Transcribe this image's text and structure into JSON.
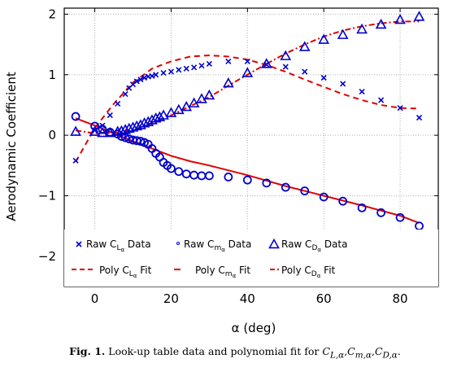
{
  "chart_data": {
    "type": "scatter",
    "xlabel": "α (deg)",
    "ylabel": "Aerodynamic Coefficient",
    "xlim": [
      -8,
      90
    ],
    "ylim": [
      -2.5,
      2.1
    ],
    "xticks": [
      0,
      20,
      40,
      60,
      80
    ],
    "yticks": [
      -2,
      -1,
      0,
      1,
      2
    ],
    "grid": true,
    "legend": [
      "Raw C_Lα Data",
      "Raw C_mα Data",
      "Raw C_Dα Data",
      "Poly C_Lα Fit",
      "Poly C_mα Fit",
      "Poly C_Dα Fit"
    ],
    "series": [
      {
        "marker": "x",
        "color": "#0000cc",
        "points": [
          [
            -5,
            -0.42
          ],
          [
            0,
            0.08
          ],
          [
            2,
            0.16
          ],
          [
            4,
            0.33
          ],
          [
            6,
            0.52
          ],
          [
            8,
            0.68
          ],
          [
            9,
            0.78
          ],
          [
            10,
            0.84
          ],
          [
            11,
            0.89
          ],
          [
            12,
            0.92
          ],
          [
            13,
            0.95
          ],
          [
            14,
            0.97
          ],
          [
            15,
            0.98
          ],
          [
            16,
            1.0
          ],
          [
            18,
            1.03
          ],
          [
            20,
            1.05
          ],
          [
            22,
            1.08
          ],
          [
            24,
            1.1
          ],
          [
            26,
            1.12
          ],
          [
            28,
            1.15
          ],
          [
            30,
            1.18
          ],
          [
            35,
            1.22
          ],
          [
            40,
            1.22
          ],
          [
            45,
            1.17
          ],
          [
            50,
            1.13
          ],
          [
            55,
            1.05
          ],
          [
            60,
            0.95
          ],
          [
            65,
            0.85
          ],
          [
            70,
            0.72
          ],
          [
            75,
            0.58
          ],
          [
            80,
            0.45
          ],
          [
            85,
            0.29
          ]
        ]
      },
      {
        "marker": "o",
        "color": "#0000cc",
        "points": [
          [
            -5,
            0.31
          ],
          [
            0,
            0.15
          ],
          [
            2,
            0.1
          ],
          [
            4,
            0.05
          ],
          [
            6,
            0.02
          ],
          [
            7,
            -0.02
          ],
          [
            8,
            -0.04
          ],
          [
            9,
            -0.06
          ],
          [
            10,
            -0.08
          ],
          [
            11,
            -0.09
          ],
          [
            12,
            -0.1
          ],
          [
            13,
            -0.12
          ],
          [
            14,
            -0.15
          ],
          [
            15,
            -0.22
          ],
          [
            16,
            -0.3
          ],
          [
            17,
            -0.36
          ],
          [
            18,
            -0.45
          ],
          [
            19,
            -0.5
          ],
          [
            20,
            -0.55
          ],
          [
            22,
            -0.6
          ],
          [
            24,
            -0.64
          ],
          [
            26,
            -0.66
          ],
          [
            28,
            -0.67
          ],
          [
            30,
            -0.67
          ],
          [
            35,
            -0.69
          ],
          [
            40,
            -0.74
          ],
          [
            45,
            -0.79
          ],
          [
            50,
            -0.86
          ],
          [
            55,
            -0.92
          ],
          [
            60,
            -1.02
          ],
          [
            65,
            -1.09
          ],
          [
            70,
            -1.2
          ],
          [
            75,
            -1.28
          ],
          [
            80,
            -1.36
          ],
          [
            85,
            -1.5
          ]
        ]
      },
      {
        "marker": "triangle",
        "color": "#0000cc",
        "points": [
          [
            -5,
            0.06
          ],
          [
            0,
            0.06
          ],
          [
            2,
            0.04
          ],
          [
            4,
            0.04
          ],
          [
            6,
            0.06
          ],
          [
            7,
            0.07
          ],
          [
            8,
            0.09
          ],
          [
            9,
            0.11
          ],
          [
            10,
            0.13
          ],
          [
            11,
            0.15
          ],
          [
            12,
            0.17
          ],
          [
            13,
            0.2
          ],
          [
            14,
            0.22
          ],
          [
            15,
            0.25
          ],
          [
            16,
            0.28
          ],
          [
            17,
            0.3
          ],
          [
            18,
            0.33
          ],
          [
            20,
            0.37
          ],
          [
            22,
            0.42
          ],
          [
            24,
            0.47
          ],
          [
            26,
            0.53
          ],
          [
            28,
            0.6
          ],
          [
            30,
            0.66
          ],
          [
            35,
            0.86
          ],
          [
            40,
            1.03
          ],
          [
            45,
            1.18
          ],
          [
            50,
            1.31
          ],
          [
            55,
            1.46
          ],
          [
            60,
            1.58
          ],
          [
            65,
            1.66
          ],
          [
            70,
            1.75
          ],
          [
            75,
            1.83
          ],
          [
            80,
            1.91
          ],
          [
            85,
            1.96
          ]
        ]
      }
    ],
    "fits": [
      {
        "style": "dashed",
        "color": "#e00000",
        "points": [
          [
            -5,
            -0.44
          ],
          [
            0,
            0.12
          ],
          [
            5,
            0.52
          ],
          [
            10,
            0.87
          ],
          [
            15,
            1.1
          ],
          [
            20,
            1.22
          ],
          [
            25,
            1.3
          ],
          [
            30,
            1.32
          ],
          [
            35,
            1.3
          ],
          [
            40,
            1.25
          ],
          [
            45,
            1.16
          ],
          [
            50,
            1.05
          ],
          [
            55,
            0.92
          ],
          [
            60,
            0.8
          ],
          [
            65,
            0.68
          ],
          [
            70,
            0.58
          ],
          [
            75,
            0.5
          ],
          [
            80,
            0.45
          ],
          [
            85,
            0.44
          ]
        ]
      },
      {
        "style": "solid",
        "color": "#e00000",
        "points": [
          [
            -5,
            0.28
          ],
          [
            0,
            0.16
          ],
          [
            5,
            0.03
          ],
          [
            10,
            -0.1
          ],
          [
            15,
            -0.22
          ],
          [
            20,
            -0.34
          ],
          [
            25,
            -0.43
          ],
          [
            30,
            -0.5
          ],
          [
            40,
            -0.66
          ],
          [
            50,
            -0.84
          ],
          [
            60,
            -1.0
          ],
          [
            70,
            -1.16
          ],
          [
            80,
            -1.33
          ],
          [
            85,
            -1.45
          ]
        ]
      },
      {
        "style": "dashdot",
        "color": "#e00000",
        "points": [
          [
            -5,
            0.08
          ],
          [
            0,
            0.03
          ],
          [
            5,
            0.04
          ],
          [
            10,
            0.09
          ],
          [
            15,
            0.2
          ],
          [
            20,
            0.33
          ],
          [
            25,
            0.48
          ],
          [
            30,
            0.63
          ],
          [
            35,
            0.82
          ],
          [
            40,
            1.0
          ],
          [
            45,
            1.18
          ],
          [
            50,
            1.35
          ],
          [
            55,
            1.5
          ],
          [
            60,
            1.63
          ],
          [
            65,
            1.73
          ],
          [
            70,
            1.8
          ],
          [
            75,
            1.85
          ],
          [
            80,
            1.88
          ],
          [
            85,
            1.88
          ]
        ]
      }
    ]
  },
  "caption": {
    "label": "Fig. 1.",
    "text": "Look-up table data and polynomial fit for",
    "symbols": [
      "C",
      "L,α",
      ",",
      "C",
      "m,α",
      ",",
      "C",
      "D,α",
      "."
    ]
  }
}
